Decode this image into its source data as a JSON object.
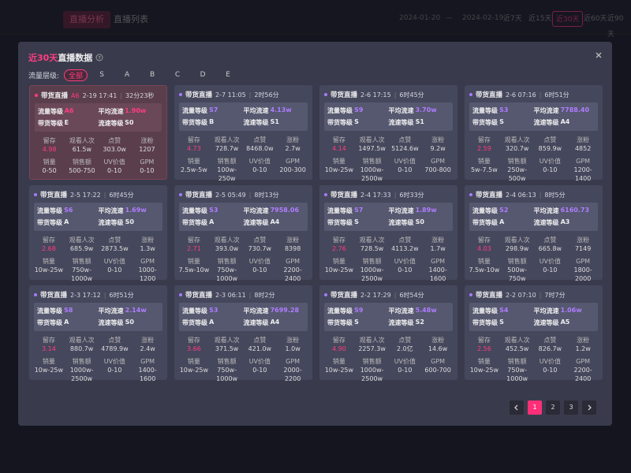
{
  "background": {
    "tabs": [
      "直播分析",
      "直播列表"
    ],
    "date_start": "2024-01-20",
    "date_sep": "—",
    "date_end": "2024-02-19",
    "ranges": [
      "近7天",
      "近15天",
      "近30天",
      "近60天",
      "近90天"
    ]
  },
  "modal": {
    "title_highlight": "近30天",
    "title": "直播数据",
    "filter_label": "流量层级:",
    "filters": [
      "全部",
      "S",
      "A",
      "B",
      "C",
      "D",
      "E"
    ],
    "labels": {
      "live_type": "带货直播",
      "traffic_level": "流量等级",
      "avg_flow": "平均流速",
      "sales_level": "带货等级",
      "flow_level": "流速等级",
      "retention": "留存",
      "views": "观看人次",
      "likes": "点赞",
      "followers": "涨粉",
      "sales": "销量",
      "revenue": "销售额",
      "uv": "UV价值",
      "gpm": "GPM"
    },
    "cards": [
      {
        "tag": "A6",
        "time": "2-19 17:41",
        "duration": "32分23秒",
        "traffic_level": "A6",
        "avg_flow": "1.90w",
        "sales_level": "E",
        "flow_level": "S0",
        "retention": "4.98",
        "views": "61.5w",
        "likes": "303.0w",
        "followers": "1207",
        "sales": "0-50",
        "revenue": "500-750",
        "uv": "0-10",
        "gpm": "0-10"
      },
      {
        "time": "2-7 11:05",
        "duration": "2时56分",
        "traffic_level": "S7",
        "avg_flow": "4.13w",
        "sales_level": "B",
        "flow_level": "S1",
        "retention": "4.73",
        "views": "728.7w",
        "likes": "8468.0w",
        "followers": "2.7w",
        "sales": "2.5w-5w",
        "revenue": "100w-250w",
        "uv": "0-10",
        "gpm": "200-300"
      },
      {
        "time": "2-6 17:15",
        "duration": "6时45分",
        "traffic_level": "S9",
        "avg_flow": "3.70w",
        "sales_level": "S",
        "flow_level": "S1",
        "retention": "4.14",
        "views": "1497.5w",
        "likes": "5124.6w",
        "followers": "9.2w",
        "sales": "10w-25w",
        "revenue": "1000w-2500w",
        "uv": "0-10",
        "gpm": "700-800"
      },
      {
        "time": "2-6 07:16",
        "duration": "6时51分",
        "traffic_level": "S3",
        "avg_flow": "7788.40",
        "sales_level": "S",
        "flow_level": "A4",
        "retention": "2.59",
        "views": "320.7w",
        "likes": "859.9w",
        "followers": "4852",
        "sales": "5w-7.5w",
        "revenue": "250w-500w",
        "uv": "0-10",
        "gpm": "1200-1400"
      },
      {
        "time": "2-5 17:22",
        "duration": "6时45分",
        "traffic_level": "S6",
        "avg_flow": "1.69w",
        "sales_level": "A",
        "flow_level": "S0",
        "retention": "2.68",
        "views": "685.9w",
        "likes": "2873.5w",
        "followers": "1.3w",
        "sales": "10w-25w",
        "revenue": "750w-1000w",
        "uv": "0-10",
        "gpm": "1000-1200"
      },
      {
        "time": "2-5 05:49",
        "duration": "8时13分",
        "traffic_level": "S3",
        "avg_flow": "7958.06",
        "sales_level": "A",
        "flow_level": "A4",
        "retention": "2.71",
        "views": "393.0w",
        "likes": "730.7w",
        "followers": "8398",
        "sales": "7.5w-10w",
        "revenue": "750w-1000w",
        "uv": "0-10",
        "gpm": "2200-2400"
      },
      {
        "time": "2-4 17:33",
        "duration": "6时33分",
        "traffic_level": "S7",
        "avg_flow": "1.89w",
        "sales_level": "S",
        "flow_level": "S0",
        "retention": "2.76",
        "views": "728.5w",
        "likes": "4113.2w",
        "followers": "1.7w",
        "sales": "10w-25w",
        "revenue": "1000w-2500w",
        "uv": "0-10",
        "gpm": "1400-1600"
      },
      {
        "time": "2-4 06:13",
        "duration": "8时5分",
        "traffic_level": "S2",
        "avg_flow": "6160.73",
        "sales_level": "A",
        "flow_level": "A3",
        "retention": "4.03",
        "views": "298.9w",
        "likes": "665.8w",
        "followers": "7149",
        "sales": "7.5w-10w",
        "revenue": "500w-750w",
        "uv": "0-10",
        "gpm": "1800-2000"
      },
      {
        "time": "2-3 17:12",
        "duration": "6时51分",
        "traffic_level": "S8",
        "avg_flow": "2.14w",
        "sales_level": "A",
        "flow_level": "S0",
        "retention": "3.14",
        "views": "880.7w",
        "likes": "4789.9w",
        "followers": "2.4w",
        "sales": "10w-25w",
        "revenue": "1000w-2500w",
        "uv": "0-10",
        "gpm": "1400-1600"
      },
      {
        "time": "2-3 06:11",
        "duration": "8时2分",
        "traffic_level": "S3",
        "avg_flow": "7699.28",
        "sales_level": "A",
        "flow_level": "A4",
        "retention": "3.66",
        "views": "371.5w",
        "likes": "421.0w",
        "followers": "1.0w",
        "sales": "10w-25w",
        "revenue": "750w-1000w",
        "uv": "0-10",
        "gpm": "2000-2200"
      },
      {
        "time": "2-2 17:29",
        "duration": "6时54分",
        "traffic_level": "S9",
        "avg_flow": "5.48w",
        "sales_level": "S",
        "flow_level": "S2",
        "retention": "4.90",
        "views": "2257.3w",
        "likes": "2.0亿",
        "followers": "14.6w",
        "sales": "10w-25w",
        "revenue": "1000w-2500w",
        "uv": "0-10",
        "gpm": "600-700"
      },
      {
        "time": "2-2 07:10",
        "duration": "7时7分",
        "traffic_level": "S4",
        "avg_flow": "1.06w",
        "sales_level": "S",
        "flow_level": "A5",
        "retention": "2.56",
        "views": "452.5w",
        "likes": "826.7w",
        "followers": "1.2w",
        "sales": "10w-25w",
        "revenue": "750w-1000w",
        "uv": "0-10",
        "gpm": "2200-2400"
      }
    ],
    "pagination": {
      "pages": [
        1,
        2,
        3
      ]
    }
  }
}
